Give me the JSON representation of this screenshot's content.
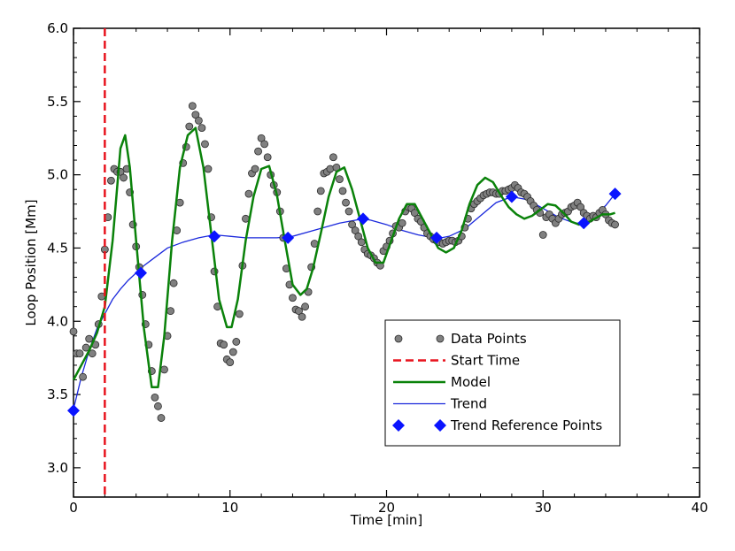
{
  "chart_data": {
    "type": "scatter",
    "title": "",
    "xlabel": "Time [min]",
    "ylabel": "Loop Position [Mm]",
    "xlim": [
      0,
      40
    ],
    "ylim": [
      2.8,
      6.0
    ],
    "xticks": [
      0,
      10,
      20,
      30,
      40
    ],
    "yticks": [
      3.0,
      3.5,
      4.0,
      4.5,
      5.0,
      5.5,
      6.0
    ],
    "grid": false,
    "legend_position": "lower-right",
    "start_time": 2.0,
    "colors": {
      "data_points": "#808080",
      "start_time": "#e8141e",
      "model": "#0a820a",
      "trend": "#1a28dc",
      "trend_reference_points": "#0a14ff"
    },
    "series": [
      {
        "name": "Data Points",
        "type": "scatter",
        "x": [
          0.0,
          0.2,
          0.4,
          0.6,
          0.8,
          1.0,
          1.2,
          1.4,
          1.6,
          1.8,
          2.0,
          2.2,
          2.4,
          2.6,
          2.8,
          3.0,
          3.2,
          3.4,
          3.6,
          3.8,
          4.0,
          4.2,
          4.4,
          4.6,
          4.8,
          5.0,
          5.2,
          5.4,
          5.6,
          5.8,
          6.0,
          6.2,
          6.4,
          6.6,
          6.8,
          7.0,
          7.2,
          7.4,
          7.6,
          7.8,
          8.0,
          8.2,
          8.4,
          8.6,
          8.8,
          9.0,
          9.2,
          9.4,
          9.6,
          9.8,
          10.0,
          10.2,
          10.4,
          10.6,
          10.8,
          11.0,
          11.2,
          11.4,
          11.6,
          11.8,
          12.0,
          12.2,
          12.4,
          12.6,
          12.8,
          13.0,
          13.2,
          13.4,
          13.6,
          13.8,
          14.0,
          14.2,
          14.4,
          14.6,
          14.8,
          15.0,
          15.2,
          15.4,
          15.6,
          15.8,
          16.0,
          16.2,
          16.4,
          16.6,
          16.8,
          17.0,
          17.2,
          17.4,
          17.6,
          17.8,
          18.0,
          18.2,
          18.4,
          18.6,
          18.8,
          19.0,
          19.2,
          19.4,
          19.6,
          19.8,
          20.0,
          20.2,
          20.4,
          20.6,
          20.8,
          21.0,
          21.2,
          21.4,
          21.6,
          21.8,
          22.0,
          22.2,
          22.4,
          22.6,
          22.8,
          23.0,
          23.2,
          23.4,
          23.6,
          23.8,
          24.0,
          24.2,
          24.4,
          24.6,
          24.8,
          25.0,
          25.2,
          25.4,
          25.6,
          25.8,
          26.0,
          26.2,
          26.4,
          26.6,
          26.8,
          27.0,
          27.2,
          27.4,
          27.6,
          27.8,
          28.0,
          28.2,
          28.4,
          28.6,
          28.8,
          29.0,
          29.2,
          29.4,
          29.6,
          29.8,
          30.0,
          30.2,
          30.4,
          30.6,
          30.8,
          31.0,
          31.2,
          31.4,
          31.6,
          31.8,
          32.0,
          32.2,
          32.4,
          32.6,
          32.8,
          33.0,
          33.2,
          33.4,
          33.6,
          33.8,
          34.0,
          34.2,
          34.4,
          34.6
        ],
        "y": [
          3.93,
          3.78,
          3.78,
          3.62,
          3.82,
          3.88,
          3.78,
          3.84,
          3.98,
          4.17,
          4.49,
          4.71,
          4.96,
          5.04,
          5.02,
          5.02,
          4.98,
          5.04,
          4.88,
          4.66,
          4.51,
          4.37,
          4.18,
          3.98,
          3.84,
          3.66,
          3.48,
          3.42,
          3.34,
          3.67,
          3.9,
          4.07,
          4.26,
          4.62,
          4.81,
          5.08,
          5.19,
          5.33,
          5.47,
          5.41,
          5.37,
          5.32,
          5.21,
          5.04,
          4.71,
          4.34,
          4.1,
          3.85,
          3.84,
          3.74,
          3.72,
          3.79,
          3.86,
          4.05,
          4.38,
          4.7,
          4.87,
          5.01,
          5.04,
          5.16,
          5.25,
          5.21,
          5.12,
          5.0,
          4.93,
          4.88,
          4.75,
          4.57,
          4.36,
          4.25,
          4.16,
          4.08,
          4.07,
          4.03,
          4.1,
          4.2,
          4.37,
          4.53,
          4.75,
          4.89,
          5.01,
          5.02,
          5.04,
          5.12,
          5.05,
          4.97,
          4.89,
          4.81,
          4.75,
          4.66,
          4.62,
          4.58,
          4.54,
          4.49,
          4.46,
          4.45,
          4.43,
          4.4,
          4.38,
          4.48,
          4.51,
          4.55,
          4.6,
          4.65,
          4.64,
          4.67,
          4.75,
          4.78,
          4.77,
          4.74,
          4.7,
          4.68,
          4.64,
          4.6,
          4.58,
          4.56,
          4.55,
          4.54,
          4.53,
          4.54,
          4.55,
          4.55,
          4.54,
          4.55,
          4.58,
          4.64,
          4.7,
          4.77,
          4.8,
          4.82,
          4.84,
          4.86,
          4.87,
          4.88,
          4.88,
          4.87,
          4.87,
          4.89,
          4.89,
          4.9,
          4.91,
          4.93,
          4.91,
          4.88,
          4.87,
          4.85,
          4.82,
          4.79,
          4.76,
          4.74,
          4.59,
          4.71,
          4.73,
          4.7,
          4.67,
          4.7,
          4.73,
          4.74,
          4.75,
          4.78,
          4.79,
          4.81,
          4.78,
          4.74,
          4.72,
          4.7,
          4.72,
          4.71,
          4.74,
          4.76,
          4.73,
          4.69,
          4.67,
          4.66
        ]
      },
      {
        "name": "Start Time",
        "type": "vline",
        "x": 2.0
      },
      {
        "name": "Model",
        "type": "line",
        "x": [
          0.0,
          0.5,
          1.0,
          1.5,
          2.0,
          2.5,
          3.0,
          3.3,
          3.6,
          4.0,
          4.5,
          5.0,
          5.4,
          5.8,
          6.3,
          6.8,
          7.3,
          7.8,
          8.3,
          8.8,
          9.3,
          9.8,
          10.1,
          10.5,
          11.0,
          11.5,
          12.0,
          12.5,
          13.0,
          13.5,
          14.0,
          14.5,
          14.9,
          15.3,
          15.8,
          16.3,
          16.8,
          17.3,
          17.8,
          18.3,
          18.8,
          19.3,
          19.8,
          20.3,
          20.8,
          21.3,
          21.8,
          22.3,
          22.8,
          23.3,
          23.8,
          24.3,
          24.8,
          25.3,
          25.8,
          26.3,
          26.8,
          27.3,
          27.8,
          28.3,
          28.8,
          29.3,
          29.8,
          30.3,
          30.8,
          31.3,
          31.8,
          32.3,
          32.8,
          33.3,
          33.8,
          34.3,
          34.6
        ],
        "y": [
          3.6,
          3.7,
          3.8,
          3.92,
          4.1,
          4.55,
          5.18,
          5.27,
          5.05,
          4.55,
          3.95,
          3.55,
          3.55,
          3.9,
          4.55,
          5.05,
          5.27,
          5.32,
          5.05,
          4.6,
          4.15,
          3.96,
          3.96,
          4.15,
          4.55,
          4.85,
          5.04,
          5.06,
          4.86,
          4.55,
          4.25,
          4.18,
          4.22,
          4.36,
          4.6,
          4.85,
          5.02,
          5.05,
          4.9,
          4.7,
          4.5,
          4.4,
          4.4,
          4.55,
          4.7,
          4.8,
          4.8,
          4.7,
          4.6,
          4.5,
          4.47,
          4.5,
          4.62,
          4.8,
          4.93,
          4.98,
          4.95,
          4.86,
          4.78,
          4.73,
          4.7,
          4.72,
          4.76,
          4.8,
          4.79,
          4.74,
          4.68,
          4.66,
          4.67,
          4.7,
          4.73,
          4.73,
          4.74
        ]
      },
      {
        "name": "Trend",
        "type": "line",
        "x": [
          0.0,
          0.5,
          1.0,
          1.5,
          2.0,
          2.5,
          3.0,
          3.5,
          4.0,
          4.5,
          5.0,
          5.5,
          6.0,
          7.0,
          8.0,
          9.0,
          10.0,
          11.0,
          12.0,
          13.0,
          14.0,
          15.0,
          16.0,
          17.0,
          18.0,
          18.5,
          19.0,
          20.0,
          21.0,
          22.0,
          23.0,
          23.5,
          24.0,
          25.0,
          26.0,
          27.0,
          28.0,
          29.0,
          30.0,
          31.0,
          32.0,
          32.5,
          33.0,
          34.0,
          34.6
        ],
        "y": [
          3.4,
          3.62,
          3.8,
          3.95,
          4.05,
          4.15,
          4.22,
          4.28,
          4.33,
          4.38,
          4.42,
          4.46,
          4.5,
          4.54,
          4.57,
          4.59,
          4.58,
          4.57,
          4.57,
          4.57,
          4.58,
          4.61,
          4.64,
          4.67,
          4.69,
          4.7,
          4.69,
          4.66,
          4.62,
          4.59,
          4.57,
          4.57,
          4.58,
          4.63,
          4.72,
          4.81,
          4.85,
          4.83,
          4.77,
          4.71,
          4.67,
          4.67,
          4.69,
          4.79,
          4.87
        ]
      },
      {
        "name": "Trend Reference Points",
        "type": "scatter",
        "x": [
          0.0,
          4.3,
          9.0,
          13.7,
          18.5,
          23.2,
          28.0,
          32.6,
          34.6
        ],
        "y": [
          3.39,
          4.33,
          4.58,
          4.57,
          4.7,
          4.57,
          4.85,
          4.67,
          4.87
        ]
      }
    ]
  }
}
